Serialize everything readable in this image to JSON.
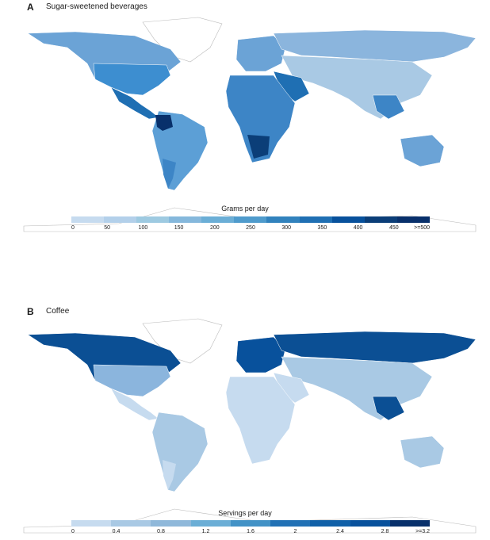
{
  "panels": [
    {
      "letter": "A",
      "title": "Sugar-sweetened beverages",
      "legend_title": "Grams per day",
      "ticks": [
        "0",
        "50",
        "100",
        "150",
        "200",
        "250",
        "300",
        "350",
        "400",
        "450",
        ">=500"
      ],
      "colors": [
        "#c6dbef",
        "#b3d0ea",
        "#9ecae1",
        "#85b8dc",
        "#6baed6",
        "#4f9bcc",
        "#3182bd",
        "#1f6fb3",
        "#08519c",
        "#0b3e78",
        "#08306b"
      ]
    },
    {
      "letter": "B",
      "title": "Coffee",
      "legend_title": "Servings per day",
      "ticks": [
        "0",
        "0.4",
        "0.8",
        "1.2",
        "1.6",
        "2",
        "2.4",
        "2.8",
        ">=3.2"
      ],
      "colors": [
        "#c6dbef",
        "#a9c9e4",
        "#8fb8da",
        "#6baed6",
        "#4292c6",
        "#2171b5",
        "#1060a8",
        "#08519c",
        "#08306b"
      ]
    }
  ],
  "chart_data": [
    {
      "type": "choropleth-map",
      "title": "Sugar-sweetened beverages",
      "legend_title": "Grams per day",
      "legend_ticks": [
        "0",
        "50",
        "100",
        "150",
        "200",
        "250",
        "300",
        "350",
        "400",
        "450",
        ">=500"
      ],
      "scale_range": [
        0,
        500
      ]
    },
    {
      "type": "choropleth-map",
      "title": "Coffee",
      "legend_title": "Servings per day",
      "legend_ticks": [
        "0",
        "0.4",
        "0.8",
        "1.2",
        "1.6",
        "2",
        "2.4",
        "2.8",
        ">=3.2"
      ],
      "scale_range": [
        0,
        3.2
      ]
    }
  ]
}
